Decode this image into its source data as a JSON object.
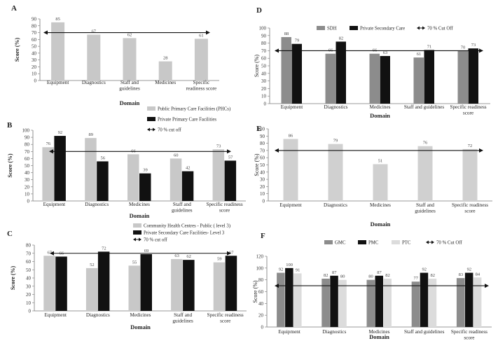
{
  "chart_data": [
    {
      "id": "A",
      "type": "bar",
      "panel_label": "A",
      "title": "",
      "xlabel": "Domain",
      "ylabel": "Score (%)",
      "ylim": [
        0,
        90
      ],
      "yticks": [
        0,
        10,
        20,
        30,
        40,
        50,
        60,
        70,
        80,
        90
      ],
      "categories": [
        [
          "Equipment"
        ],
        [
          "Diagnostics"
        ],
        [
          "Staff and",
          "guidelines"
        ],
        [
          "Medicines"
        ],
        [
          "Specific",
          "readiness score"
        ]
      ],
      "series": [
        {
          "name": "",
          "color": "#c8c8c8",
          "values": [
            85,
            67,
            62,
            28,
            61
          ]
        }
      ],
      "cutoff": 70,
      "legend": [],
      "colors": {
        "bar1": "#c8c8c8"
      }
    },
    {
      "id": "B",
      "type": "bar",
      "panel_label": "B",
      "title": "",
      "xlabel": "Domain",
      "ylabel": "Score (%)",
      "ylim": [
        0,
        100
      ],
      "yticks": [
        0,
        10,
        20,
        30,
        40,
        50,
        60,
        70,
        80,
        90,
        100
      ],
      "categories": [
        [
          "Equipment"
        ],
        [
          "Diagnostics"
        ],
        [
          "Medicines"
        ],
        [
          "Staff and",
          "guidelines"
        ],
        [
          "Specific readiness",
          "score"
        ]
      ],
      "series": [
        {
          "name": "Public Primary Care Facilities (PHCs)",
          "color": "#c8c8c8",
          "values": [
            76,
            89,
            66,
            60,
            73
          ]
        },
        {
          "name": "Private Primary Care Facilities",
          "color": "#111111",
          "values": [
            92,
            56,
            39,
            42,
            57
          ]
        }
      ],
      "cutoff": 70,
      "legend": [
        "Public Primary Care Facilities (PHCs)",
        "Private Primary Care Facilities",
        "70 % cut off"
      ],
      "legend_placement": "top-right"
    },
    {
      "id": "C",
      "type": "bar",
      "panel_label": "C",
      "title": "",
      "xlabel": "Domain",
      "ylabel": "Score (%)",
      "ylim": [
        0,
        80
      ],
      "yticks": [
        0,
        10,
        20,
        30,
        40,
        50,
        60,
        70,
        80
      ],
      "categories": [
        [
          "Equipment"
        ],
        [
          "Diagnostics"
        ],
        [
          "Medicines"
        ],
        [
          "Staff and",
          "guidelines"
        ],
        [
          "Specific readiness",
          "score"
        ]
      ],
      "series": [
        {
          "name": "Community Health Centres - Public ( level 3)",
          "color": "#c8c8c8",
          "values": [
            67,
            52,
            55,
            63,
            59
          ]
        },
        {
          "name": "Private Secondary Care Facilities- Level 3",
          "color": "#111111",
          "values": [
            66,
            72,
            69,
            62,
            67
          ]
        }
      ],
      "cutoff": 70,
      "legend": [
        "Community Health Centres - Public ( level 3)",
        "Private Secondary Care Facilities- Level 3",
        "70 % cut off"
      ],
      "legend_placement": "top-right"
    },
    {
      "id": "D",
      "type": "bar",
      "panel_label": "D",
      "title": "",
      "xlabel": "Domain",
      "ylabel": "Score (%)",
      "ylim": [
        0,
        100
      ],
      "yticks": [
        0,
        10,
        20,
        30,
        40,
        50,
        60,
        70,
        80,
        90,
        100
      ],
      "categories": [
        [
          "Equipment"
        ],
        [
          "Diagnostics"
        ],
        [
          "Medicines"
        ],
        [
          "Staff and guidelines"
        ],
        [
          "Specific readiness",
          "score"
        ]
      ],
      "series": [
        {
          "name": "SDH",
          "color": "#8c8c8c",
          "values": [
            88,
            66,
            66,
            61,
            70
          ]
        },
        {
          "name": "Private Secondary  Care",
          "color": "#111111",
          "values": [
            79,
            82,
            63,
            71,
            73
          ]
        }
      ],
      "cutoff": 70,
      "legend": [
        "SDH",
        "Private Secondary  Care",
        "70 % Cut Off"
      ],
      "legend_placement": "top"
    },
    {
      "id": "E",
      "type": "bar",
      "panel_label": "E",
      "title": "",
      "xlabel": "Domain",
      "ylabel": "Score (%)",
      "ylim": [
        0,
        100
      ],
      "yticks": [
        0,
        10,
        20,
        30,
        40,
        50,
        60,
        70,
        80,
        90,
        100
      ],
      "categories": [
        [
          "Equipment"
        ],
        [
          "Diagnostics"
        ],
        [
          "Medicines"
        ],
        [
          "Staff and",
          "guidelines"
        ],
        [
          "Specific readiness",
          "score"
        ]
      ],
      "series": [
        {
          "name": "",
          "color": "#d0d0d0",
          "values": [
            86,
            79,
            51,
            76,
            72
          ]
        }
      ],
      "cutoff": 70,
      "legend": []
    },
    {
      "id": "F",
      "type": "bar",
      "panel_label": "F",
      "title": "",
      "xlabel": "Domain",
      "ylabel": "Score (%)",
      "ylim": [
        0,
        120
      ],
      "yticks": [
        0,
        20,
        40,
        60,
        80,
        100,
        120
      ],
      "categories": [
        [
          "Equipment"
        ],
        [
          "Diagnostics"
        ],
        [
          "Medicines"
        ],
        [
          "Staff and guidelines"
        ],
        [
          "Specific readiness",
          "score"
        ]
      ],
      "series": [
        {
          "name": "GMC",
          "color": "#8c8c8c",
          "values": [
            92,
            82,
            80,
            77,
            83
          ]
        },
        {
          "name": "PMC",
          "color": "#111111",
          "values": [
            100,
            87,
            87,
            92,
            92
          ]
        },
        {
          "name": "PTC",
          "color": "#dcdcdc",
          "values": [
            91,
            80,
            82,
            82,
            84
          ]
        }
      ],
      "cutoff": 70,
      "legend": [
        "GMC",
        "PMC",
        "PTC",
        "70 % Cut Off"
      ],
      "legend_placement": "top"
    }
  ]
}
